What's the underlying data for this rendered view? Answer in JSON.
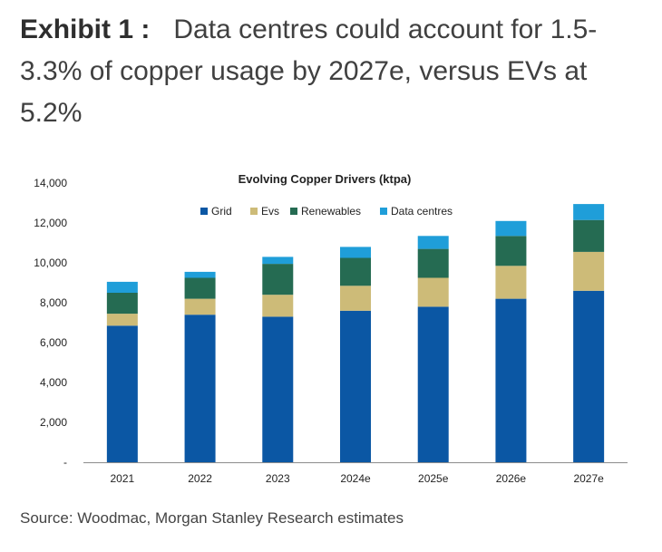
{
  "header": {
    "exhibit": "Exhibit 1 :",
    "title": "Data centres could account for 1.5-3.3% of copper usage by 2027e, versus EVs at 5.2%"
  },
  "footer": {
    "source": "Source: Woodmac, Morgan Stanley Research estimates"
  },
  "chart_data": {
    "type": "bar",
    "stacked": true,
    "title": "Evolving Copper Drivers (ktpa)",
    "xlabel": "",
    "ylabel": "",
    "categories": [
      "2021",
      "2022",
      "2023",
      "2024e",
      "2025e",
      "2026e",
      "2027e"
    ],
    "series": [
      {
        "name": "Grid",
        "color": "#0b57a4",
        "values": [
          6850,
          7400,
          7300,
          7600,
          7800,
          8200,
          8600
        ]
      },
      {
        "name": "Evs",
        "color": "#cdbb78",
        "values": [
          600,
          800,
          1100,
          1250,
          1450,
          1650,
          1950
        ]
      },
      {
        "name": "Renewables",
        "color": "#256b52",
        "values": [
          1050,
          1050,
          1550,
          1400,
          1450,
          1500,
          1600
        ]
      },
      {
        "name": "Data centres",
        "color": "#1f9ed9",
        "values": [
          550,
          300,
          350,
          550,
          650,
          750,
          800
        ]
      }
    ],
    "ylim": [
      0,
      14000
    ],
    "yticks": [
      0,
      2000,
      4000,
      6000,
      8000,
      10000,
      12000,
      14000
    ],
    "ytick_labels": [
      "-",
      "2,000",
      "4,000",
      "6,000",
      "8,000",
      "10,000",
      "12,000",
      "14,000"
    ],
    "grid": false,
    "legend": "top"
  }
}
